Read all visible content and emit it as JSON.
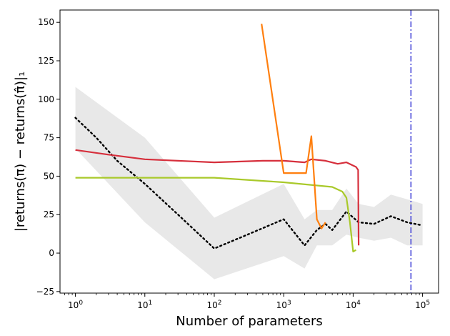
{
  "chart_data": {
    "type": "line",
    "xlabel": "Number of parameters",
    "ylabel": "|returns(π) − returns(π̂)|₁",
    "x_scale": "log",
    "xlim": [
      0.6,
      170000
    ],
    "ylim": [
      -26,
      158
    ],
    "grid": false,
    "x_ticks": [
      {
        "value": 1,
        "base": "10",
        "exp": "0"
      },
      {
        "value": 10,
        "base": "10",
        "exp": "1"
      },
      {
        "value": 100,
        "base": "10",
        "exp": "2"
      },
      {
        "value": 1000,
        "base": "10",
        "exp": "3"
      },
      {
        "value": 10000,
        "base": "10",
        "exp": "4"
      },
      {
        "value": 100000,
        "base": "10",
        "exp": "5"
      }
    ],
    "y_ticks": [
      -25,
      0,
      25,
      50,
      75,
      100,
      125,
      150
    ],
    "vline": {
      "x": 68000,
      "color": "#3b3bd6"
    },
    "series": [
      {
        "color": "#000000",
        "style": "dotted",
        "band_color": "#d9d9d9",
        "points": [
          [
            1,
            88
          ],
          [
            2,
            75
          ],
          [
            4,
            60
          ],
          [
            10,
            45
          ],
          [
            30,
            25
          ],
          [
            100,
            3
          ],
          [
            300,
            12
          ],
          [
            1000,
            22
          ],
          [
            2000,
            5
          ],
          [
            3000,
            15
          ],
          [
            4000,
            19
          ],
          [
            5000,
            15
          ],
          [
            8000,
            27
          ],
          [
            12000,
            20
          ],
          [
            20000,
            19
          ],
          [
            35000,
            24
          ],
          [
            60000,
            20
          ],
          [
            100000,
            18
          ]
        ],
        "band": [
          [
            1,
            68,
            108
          ],
          [
            10,
            20,
            75
          ],
          [
            100,
            -17,
            23
          ],
          [
            1000,
            -2,
            45
          ],
          [
            2000,
            -10,
            22
          ],
          [
            3000,
            5,
            28
          ],
          [
            5000,
            5,
            28
          ],
          [
            8000,
            12,
            42
          ],
          [
            12000,
            10,
            32
          ],
          [
            20000,
            8,
            30
          ],
          [
            35000,
            10,
            38
          ],
          [
            60000,
            5,
            35
          ],
          [
            100000,
            5,
            32
          ]
        ]
      },
      {
        "color": "#d62f3c",
        "style": "solid",
        "points": [
          [
            1,
            67
          ],
          [
            3,
            64
          ],
          [
            10,
            61
          ],
          [
            100,
            59
          ],
          [
            500,
            60
          ],
          [
            1000,
            60
          ],
          [
            2000,
            59
          ],
          [
            2500,
            61
          ],
          [
            4000,
            60
          ],
          [
            6000,
            58
          ],
          [
            8000,
            59
          ],
          [
            11000,
            56
          ],
          [
            11800,
            54
          ],
          [
            12000,
            5
          ]
        ]
      },
      {
        "color": "#a9c92a",
        "style": "solid",
        "points": [
          [
            1,
            49
          ],
          [
            10,
            49
          ],
          [
            100,
            49
          ],
          [
            1000,
            46
          ],
          [
            5000,
            43
          ],
          [
            7000,
            40
          ],
          [
            8000,
            36
          ],
          [
            9000,
            20
          ],
          [
            10000,
            1
          ],
          [
            11000,
            2
          ]
        ]
      },
      {
        "color": "#ff7f0e",
        "style": "solid",
        "points": [
          [
            480,
            149
          ],
          [
            1000,
            52
          ],
          [
            1700,
            52
          ],
          [
            2100,
            52
          ],
          [
            2500,
            76
          ],
          [
            3000,
            22
          ],
          [
            3500,
            16
          ],
          [
            4000,
            20
          ]
        ]
      }
    ]
  }
}
